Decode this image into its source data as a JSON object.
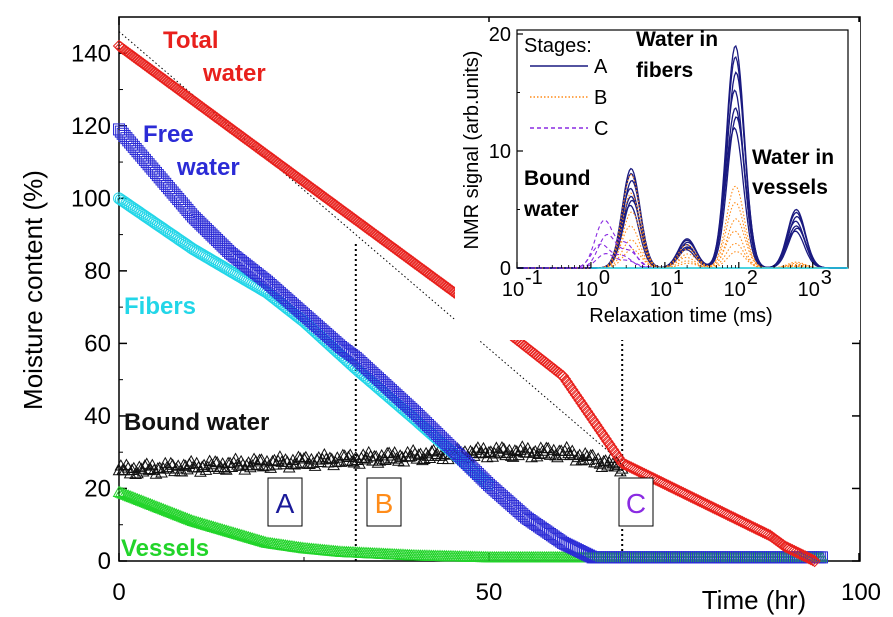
{
  "chart_data": [
    {
      "type": "scatter",
      "xlabel": "Time (hr)",
      "ylabel": "Moisture content (%)",
      "xlim": [
        0,
        100
      ],
      "ylim": [
        0,
        150
      ],
      "x_ticks": [
        "0",
        "50",
        "100"
      ],
      "y_ticks": [
        "0",
        "20",
        "40",
        "60",
        "80",
        "100",
        "120",
        "140"
      ],
      "grid": false,
      "series": [
        {
          "name": "Total water",
          "marker": "diamond",
          "color": "#e8201c",
          "x": [
            0,
            10,
            20,
            30,
            40,
            50,
            60,
            68,
            75,
            80,
            85,
            88,
            90,
            94
          ],
          "y": [
            142,
            127,
            112,
            97,
            82,
            67,
            51,
            27,
            20,
            15,
            10,
            7,
            4,
            0
          ]
        },
        {
          "name": "Free water",
          "marker": "square",
          "color": "#2b2bd6",
          "x": [
            0,
            5,
            10,
            15,
            20,
            25,
            30,
            32,
            40,
            45,
            50,
            55,
            60,
            64,
            68,
            95
          ],
          "y": [
            119,
            107,
            95,
            85,
            77,
            68,
            59,
            56,
            41,
            31,
            21,
            12,
            5,
            1,
            1,
            1
          ]
        },
        {
          "name": "Fibers",
          "marker": "circle",
          "color": "#22d6e8",
          "x": [
            0,
            5,
            10,
            15,
            20,
            25,
            32,
            40,
            50
          ],
          "y": [
            100,
            93,
            86,
            80,
            74,
            66,
            53,
            39,
            21
          ]
        },
        {
          "name": "Bound water",
          "marker": "triangle",
          "color": "#111111",
          "x": [
            0,
            10,
            20,
            30,
            40,
            50,
            60,
            68
          ],
          "y": [
            25,
            26,
            27,
            28,
            29,
            30,
            30,
            26
          ]
        },
        {
          "name": "Vessels",
          "marker": "triangle",
          "color": "#22d42a",
          "x": [
            0,
            5,
            10,
            15,
            20,
            25,
            30,
            35,
            40,
            50,
            60,
            70,
            95
          ],
          "y": [
            19,
            15,
            11,
            8,
            5,
            3.5,
            2.5,
            2,
            1.5,
            1,
            1,
            1,
            1
          ]
        }
      ],
      "reference_line": {
        "x": [
          0,
          68
        ],
        "y": [
          146,
          27
        ]
      },
      "stage_boundaries_x": [
        32,
        68
      ],
      "stage_labels": [
        {
          "text": "A",
          "color": "#1a1a99"
        },
        {
          "text": "B",
          "color": "#ff8c1a"
        },
        {
          "text": "C",
          "color": "#8a2be2"
        }
      ],
      "annotations": [
        {
          "lines": [
            "Total",
            "water"
          ],
          "color": "#e8201c"
        },
        {
          "lines": [
            "Free",
            "water"
          ],
          "color": "#2b2bd6"
        },
        {
          "lines": [
            "Fibers"
          ],
          "color": "#22d6e8"
        },
        {
          "lines": [
            "Bound water"
          ],
          "color": "#111111"
        },
        {
          "lines": [
            "Vessels"
          ],
          "color": "#22d42a"
        }
      ]
    },
    {
      "type": "line",
      "xlabel": "Relaxation time (ms)",
      "ylabel": "NMR signal (arb.units)",
      "xscale": "log",
      "xlim": [
        0.1,
        3000
      ],
      "ylim": [
        0,
        20
      ],
      "x_ticks": [
        "10",
        "10",
        "10",
        "10",
        "10"
      ],
      "x_tick_exponents": [
        "-1",
        "0",
        "1",
        "2",
        "3"
      ],
      "y_ticks": [
        "0",
        "10",
        "20"
      ],
      "legend_title": "Stages:",
      "legend_position": "top-left",
      "series": [
        {
          "name": "A",
          "style": "solid",
          "color": "#1a1a80",
          "peaks": [
            {
              "t": 3.5,
              "h": 8.5
            },
            {
              "t": 20,
              "h": 2.5
            },
            {
              "t": 90,
              "h": 19
            },
            {
              "t": 600,
              "h": 5
            }
          ]
        },
        {
          "name": "B",
          "style": "dotted",
          "color": "#ff8c1a",
          "peaks": [
            {
              "t": 3.5,
              "h": 8
            },
            {
              "t": 20,
              "h": 2
            },
            {
              "t": 90,
              "h": 7
            },
            {
              "t": 600,
              "h": 0.5
            }
          ]
        },
        {
          "name": "C",
          "style": "dashed",
          "color": "#8a2be2",
          "peaks": [
            {
              "t": 1.5,
              "h": 4
            },
            {
              "t": 3.0,
              "h": 2
            }
          ]
        }
      ],
      "annotations": [
        {
          "lines": [
            "Water in",
            "fibers"
          ]
        },
        {
          "lines": [
            "Bound",
            "water"
          ]
        },
        {
          "lines": [
            "Water in",
            "vessels"
          ]
        }
      ]
    }
  ]
}
